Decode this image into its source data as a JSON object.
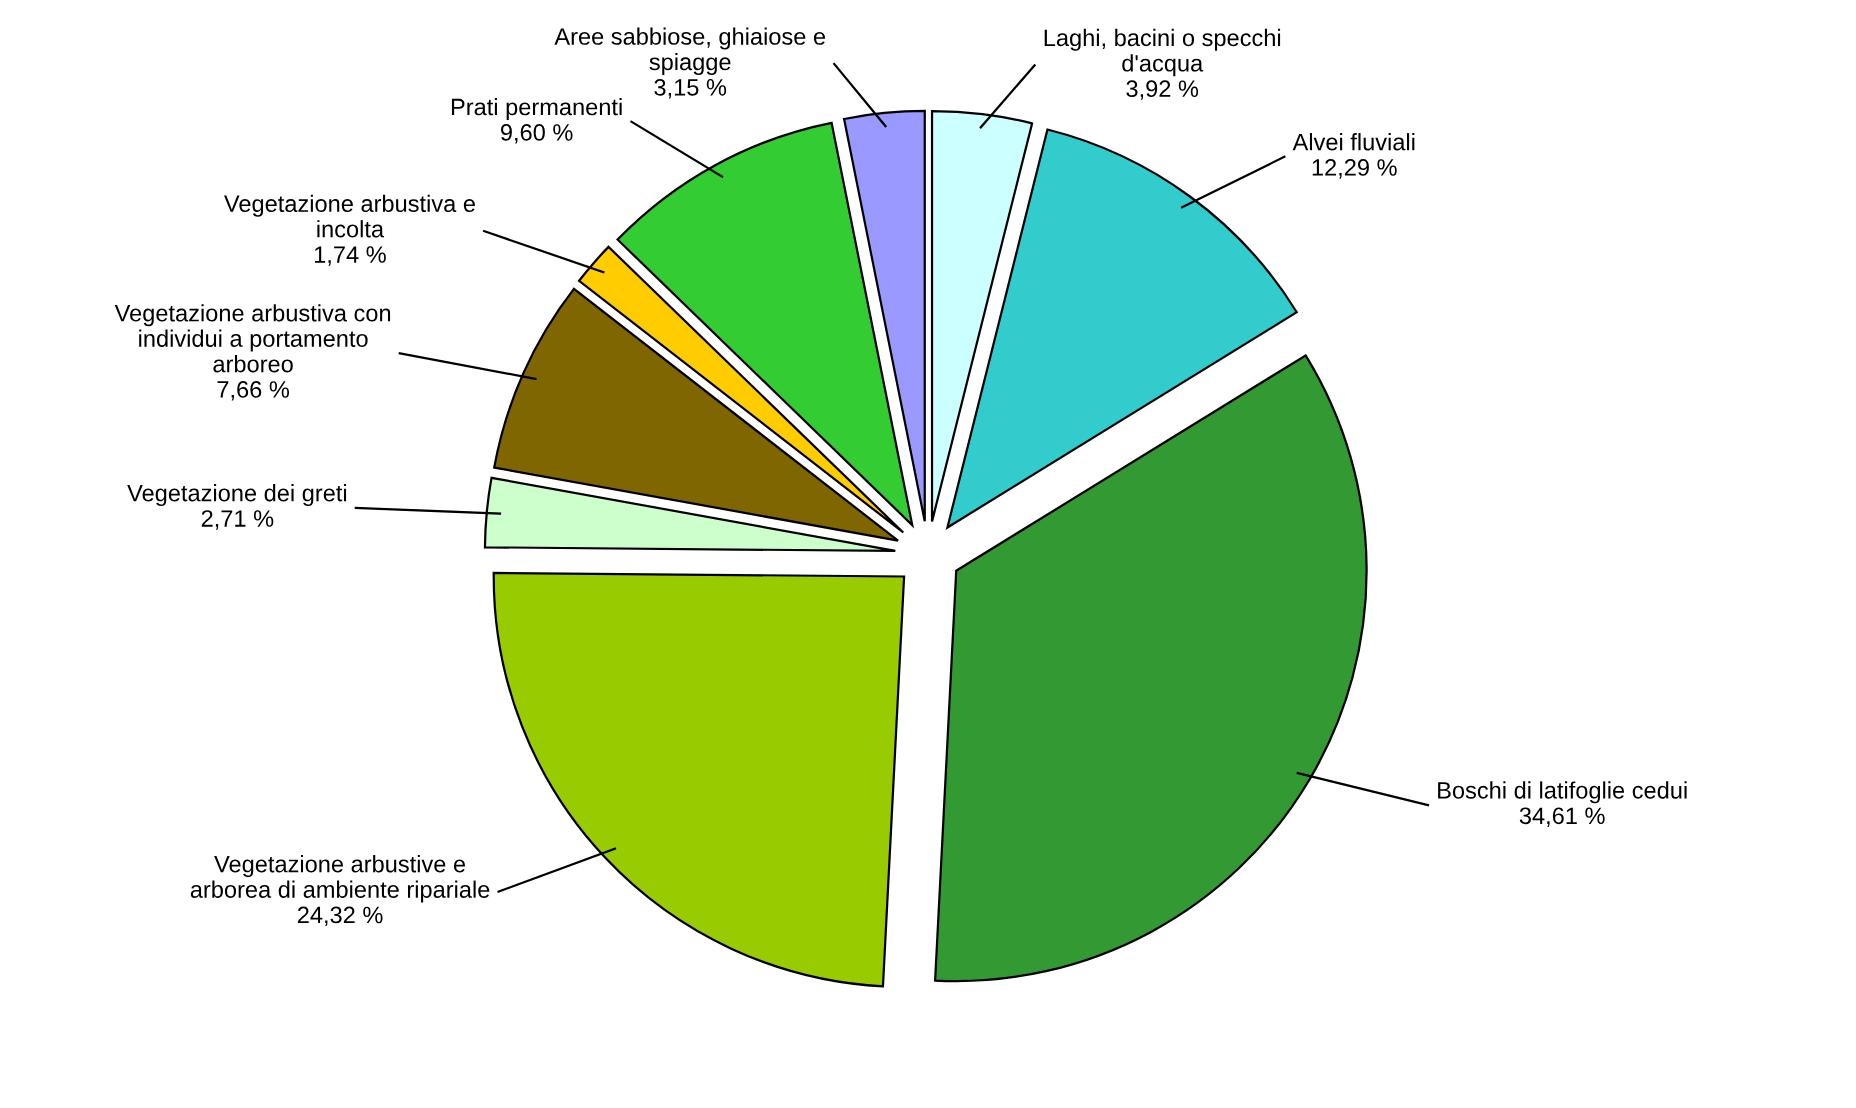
{
  "chart_data": {
    "type": "pie",
    "categories": [
      "Laghi, bacini o specchi\nd'acqua",
      "Alvei fluviali",
      "Boschi di latifoglie cedui",
      "Vegetazione arbustive e\narborea di ambiente ripariale",
      "Vegetazione dei greti",
      "Vegetazione arbustiva con\nindividui a portamento\narboreo",
      "Vegetazione arbustiva e\nincolta",
      "Prati permanenti",
      "Aree sabbiose, ghiaiose e\nspiagge"
    ],
    "values": [
      3.92,
      12.29,
      34.61,
      24.32,
      2.71,
      7.66,
      1.74,
      9.6,
      3.15
    ],
    "value_labels": [
      "3,92 %",
      "12,29 %",
      "34,61 %",
      "24,32 %",
      "2,71 %",
      "7,66 %",
      "1,74 %",
      "9,60 %",
      "3,15 %"
    ],
    "colors": [
      "#ccffff",
      "#33cccc",
      "#339933",
      "#99cc00",
      "#ccffcc",
      "#806600",
      "#ffcc00",
      "#33cc33",
      "#9999ff"
    ],
    "legend": false
  }
}
